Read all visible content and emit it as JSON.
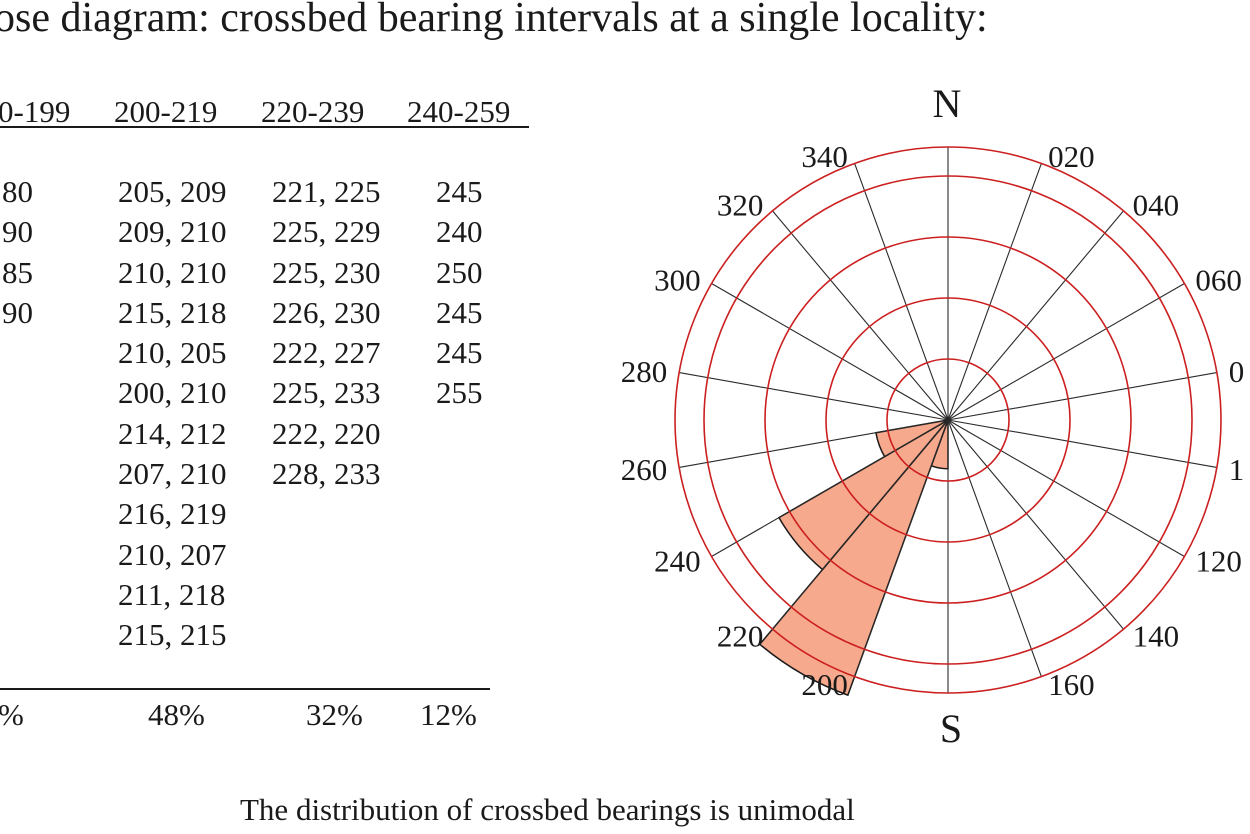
{
  "title": "ose diagram: crossbed bearing intervals at a single locality:",
  "table": {
    "headers": [
      "0-199",
      "200-219",
      "220-239",
      "240-259"
    ],
    "columns": [
      [
        "80",
        "90",
        "85",
        "90"
      ],
      [
        "205, 209",
        "209, 210",
        "210, 210",
        "215, 218",
        "210, 205",
        "200, 210",
        "214, 212",
        "207, 210",
        "216, 219",
        "210, 207",
        "211, 218",
        "215, 215"
      ],
      [
        "221, 225",
        "225, 229",
        "225, 230",
        "226, 230",
        "222, 227",
        "225, 233",
        "222, 220",
        "228, 233"
      ],
      [
        "245",
        "240",
        "250",
        "245",
        "245",
        "255"
      ]
    ],
    "percentages": [
      "%",
      "48%",
      "32%",
      "12%"
    ]
  },
  "rose": {
    "north_label": "N",
    "south_label": "S",
    "bearing_labels": [
      "020",
      "040",
      "060",
      "0",
      "1",
      "120",
      "140",
      "160",
      "200",
      "220",
      "240",
      "260",
      "280",
      "300",
      "320",
      "340"
    ],
    "ring_color": "#cc1f1f",
    "petal_color": "#f6a98c",
    "petals": [
      {
        "from": 180,
        "to": 200,
        "percent": 8
      },
      {
        "from": 200,
        "to": 220,
        "percent": 48
      },
      {
        "from": 220,
        "to": 240,
        "percent": 32
      },
      {
        "from": 240,
        "to": 260,
        "percent": 12
      }
    ]
  },
  "caption": "The distribution of crossbed bearings is unimodal"
}
